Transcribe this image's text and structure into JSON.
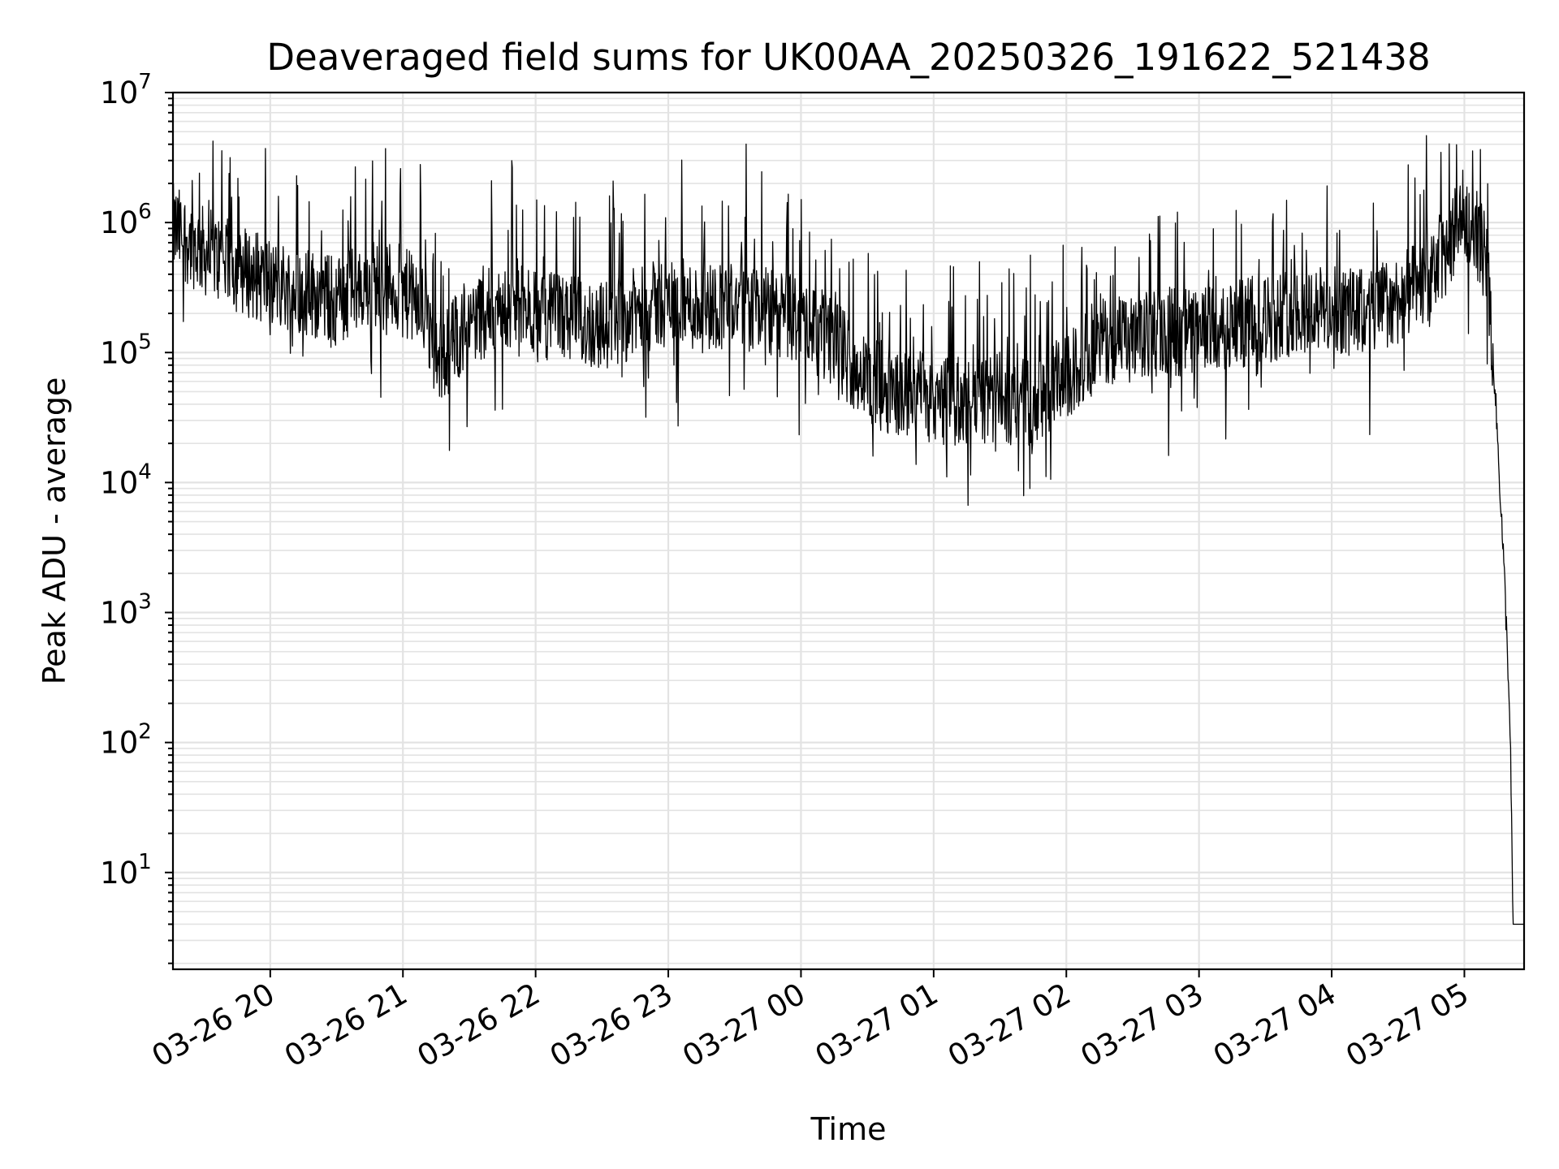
{
  "chart_data": {
    "type": "line",
    "title": "Deaveraged field sums for UK00AA_20250326_191622_521438",
    "xlabel": "Time",
    "ylabel": "Peak ADU - average",
    "y_scale": "log",
    "ylim": [
      1.8,
      10000000
    ],
    "xlim": [
      "03-26 19:16",
      "03-27 05:27"
    ],
    "x_ticks": [
      "03-26 20",
      "03-26 21",
      "03-26 22",
      "03-26 23",
      "03-27 00",
      "03-27 01",
      "03-27 02",
      "03-27 03",
      "03-27 04",
      "03-27 05"
    ],
    "y_ticks": [
      {
        "base": "10",
        "exp": "1"
      },
      {
        "base": "10",
        "exp": "2"
      },
      {
        "base": "10",
        "exp": "3"
      },
      {
        "base": "10",
        "exp": "4"
      },
      {
        "base": "10",
        "exp": "5"
      },
      {
        "base": "10",
        "exp": "6"
      },
      {
        "base": "10",
        "exp": "7"
      }
    ],
    "grid": true,
    "line_color": "#000000",
    "grid_color": "#e3e3e3",
    "series": [
      {
        "x": [
          "03-26 19:16",
          "03-26 19:30",
          "03-26 19:45",
          "03-26 20:00",
          "03-26 20:15",
          "03-26 20:30",
          "03-26 20:45",
          "03-26 21:00",
          "03-26 21:10",
          "03-26 21:15",
          "03-26 21:30",
          "03-26 21:45",
          "03-26 22:00",
          "03-26 22:15",
          "03-26 22:30",
          "03-26 22:45",
          "03-26 23:00",
          "03-26 23:15",
          "03-26 23:30",
          "03-26 23:45",
          "03-27 00:00",
          "03-27 00:15",
          "03-27 00:30",
          "03-27 00:45",
          "03-27 01:00",
          "03-27 01:15",
          "03-27 01:30",
          "03-27 01:45",
          "03-27 02:00",
          "03-27 02:15",
          "03-27 02:30",
          "03-27 02:45",
          "03-27 03:00",
          "03-27 03:15",
          "03-27 03:30",
          "03-27 03:45",
          "03-27 04:00",
          "03-27 04:15",
          "03-27 04:30",
          "03-27 04:45",
          "03-27 05:00",
          "03-27 05:05",
          "03-27 05:10",
          "03-27 05:13",
          "03-27 05:16",
          "03-27 05:18",
          "03-27 05:20",
          "03-27 05:21",
          "03-27 05:22",
          "03-27 05:23",
          "03-27 05:27"
        ],
        "values": [
          900000,
          600000,
          450000,
          350000,
          300000,
          250000,
          350000,
          300000,
          200000,
          80000,
          180000,
          220000,
          200000,
          180000,
          160000,
          200000,
          250000,
          220000,
          250000,
          200000,
          180000,
          120000,
          60000,
          50000,
          45000,
          40000,
          45000,
          40000,
          60000,
          130000,
          120000,
          150000,
          140000,
          160000,
          180000,
          220000,
          210000,
          200000,
          260000,
          350000,
          1200000,
          900000,
          500000,
          100000,
          10000,
          2000,
          300,
          60,
          4,
          4,
          4
        ]
      }
    ]
  }
}
